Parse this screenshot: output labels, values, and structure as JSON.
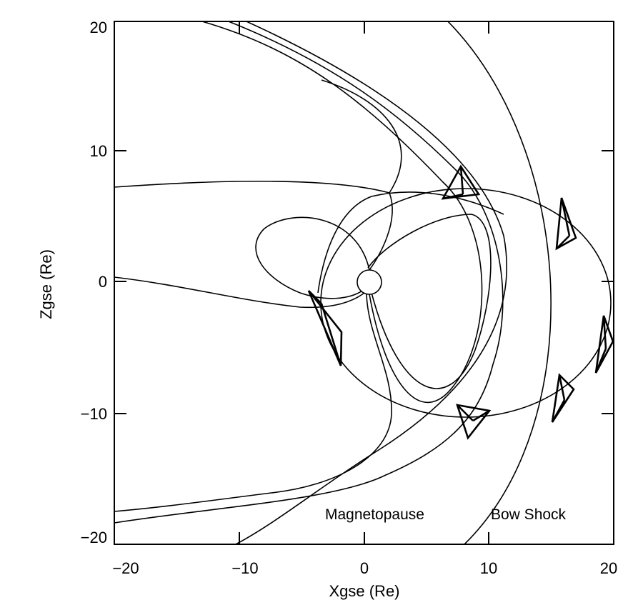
{
  "x_axis": {
    "title": "Xgse (Re)",
    "ticks": [
      "−20",
      "−10",
      "0",
      "10",
      "20"
    ]
  },
  "y_axis": {
    "title": "Zgse (Re)",
    "ticks": [
      "20",
      "10",
      "0",
      "−10",
      "−20"
    ]
  },
  "annotations": {
    "magnetopause": "Magnetopause",
    "bow_shock": "Bow Shock"
  }
}
